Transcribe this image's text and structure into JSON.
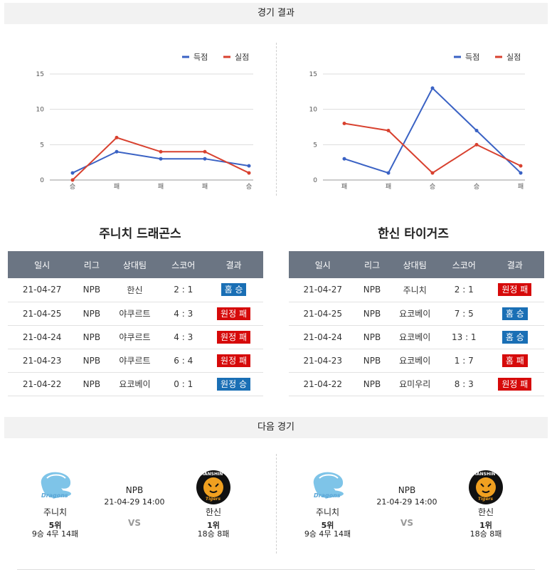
{
  "header": {
    "results_title": "경기 결과",
    "next_title": "다음 경기"
  },
  "chart_data": [
    {
      "type": "line",
      "categories": [
        "승",
        "패",
        "패",
        "패",
        "승"
      ],
      "ylim": [
        0,
        15
      ],
      "yticks": [
        "0",
        "5",
        "10",
        "15"
      ],
      "legend_position": "top-right",
      "series": [
        {
          "name": "득점",
          "color": "#3a62c4",
          "values": [
            1,
            4,
            3,
            3,
            2
          ]
        },
        {
          "name": "실점",
          "color": "#d8412f",
          "values": [
            0,
            6,
            4,
            4,
            1
          ]
        }
      ]
    },
    {
      "type": "line",
      "categories": [
        "패",
        "패",
        "승",
        "승",
        "패"
      ],
      "ylim": [
        0,
        15
      ],
      "yticks": [
        "0",
        "5",
        "10",
        "15"
      ],
      "legend_position": "top-right",
      "series": [
        {
          "name": "득점",
          "color": "#3a62c4",
          "values": [
            3,
            1,
            13,
            7,
            1
          ]
        },
        {
          "name": "실점",
          "color": "#d8412f",
          "values": [
            8,
            7,
            1,
            5,
            2
          ]
        }
      ]
    }
  ],
  "teams": [
    {
      "name": "주니치 드래곤스",
      "headers": [
        "일시",
        "리그",
        "상대팀",
        "스코어",
        "결과"
      ],
      "rows": [
        {
          "date": "21-04-27",
          "league": "NPB",
          "opponent": "한신",
          "score": "2 : 1",
          "result": "홈 승",
          "type": "win"
        },
        {
          "date": "21-04-25",
          "league": "NPB",
          "opponent": "야쿠르트",
          "score": "4 : 3",
          "result": "원정 패",
          "type": "loss"
        },
        {
          "date": "21-04-24",
          "league": "NPB",
          "opponent": "야쿠르트",
          "score": "4 : 3",
          "result": "원정 패",
          "type": "loss"
        },
        {
          "date": "21-04-23",
          "league": "NPB",
          "opponent": "야쿠르트",
          "score": "6 : 4",
          "result": "원정 패",
          "type": "loss"
        },
        {
          "date": "21-04-22",
          "league": "NPB",
          "opponent": "요코베이",
          "score": "0 : 1",
          "result": "원정 승",
          "type": "win"
        }
      ]
    },
    {
      "name": "한신 타이거즈",
      "headers": [
        "일시",
        "리그",
        "상대팀",
        "스코어",
        "결과"
      ],
      "rows": [
        {
          "date": "21-04-27",
          "league": "NPB",
          "opponent": "주니치",
          "score": "2 : 1",
          "result": "원정 패",
          "type": "loss"
        },
        {
          "date": "21-04-25",
          "league": "NPB",
          "opponent": "요코베이",
          "score": "7 : 5",
          "result": "홈 승",
          "type": "win"
        },
        {
          "date": "21-04-24",
          "league": "NPB",
          "opponent": "요코베이",
          "score": "13 : 1",
          "result": "홈 승",
          "type": "win"
        },
        {
          "date": "21-04-23",
          "league": "NPB",
          "opponent": "요코베이",
          "score": "1 : 7",
          "result": "홈 패",
          "type": "loss"
        },
        {
          "date": "21-04-22",
          "league": "NPB",
          "opponent": "요미우리",
          "score": "8 : 3",
          "result": "원정 패",
          "type": "loss"
        }
      ]
    }
  ],
  "next_games": [
    {
      "league": "NPB",
      "datetime": "21-04-29 14:00",
      "vs": "VS",
      "home": {
        "name": "주니치",
        "rank": "5위",
        "record": "9승 4무 14패",
        "logo_icon": "dragons-logo-icon",
        "logo_text": "Dragons"
      },
      "away": {
        "name": "한신",
        "rank": "1위",
        "record": "18승 8패",
        "logo_icon": "tigers-logo-icon",
        "logo_text": "HANSHIN",
        "logo_sub": "Tigers"
      }
    },
    {
      "league": "NPB",
      "datetime": "21-04-29 14:00",
      "vs": "VS",
      "home": {
        "name": "주니치",
        "rank": "5위",
        "record": "9승 4무 14패",
        "logo_icon": "dragons-logo-icon",
        "logo_text": "Dragons"
      },
      "away": {
        "name": "한신",
        "rank": "1위",
        "record": "18승 8패",
        "logo_icon": "tigers-logo-icon",
        "logo_text": "HANSHIN",
        "logo_sub": "Tigers"
      }
    }
  ]
}
